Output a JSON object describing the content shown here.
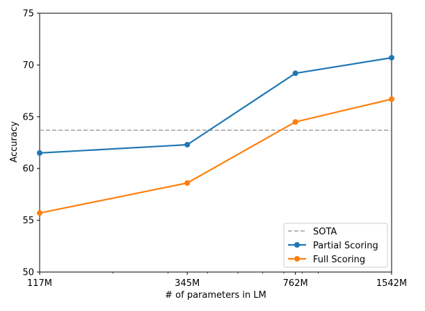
{
  "chart_data": {
    "type": "line",
    "title": "",
    "xlabel": "# of parameters in LM",
    "ylabel": "Accuracy",
    "x_scale": "log",
    "x": [
      117,
      345,
      762,
      1542
    ],
    "x_tick_labels": [
      "117M",
      "345M",
      "762M",
      "1542M"
    ],
    "xlim": [
      117,
      1542
    ],
    "ylim": [
      50,
      75
    ],
    "y_ticks": [
      50,
      55,
      60,
      65,
      70,
      75
    ],
    "grid": false,
    "legend_position": "bottom-right",
    "reference_line": {
      "name": "SOTA",
      "value": 63.7,
      "color": "#a0a0a0",
      "style": "dashed"
    },
    "series": [
      {
        "name": "Partial Scoring",
        "color": "#1f77b4",
        "values": [
          61.5,
          62.3,
          69.2,
          70.7
        ]
      },
      {
        "name": "Full Scoring",
        "color": "#ff7f0e",
        "values": [
          55.7,
          58.6,
          64.5,
          66.7
        ]
      }
    ]
  }
}
